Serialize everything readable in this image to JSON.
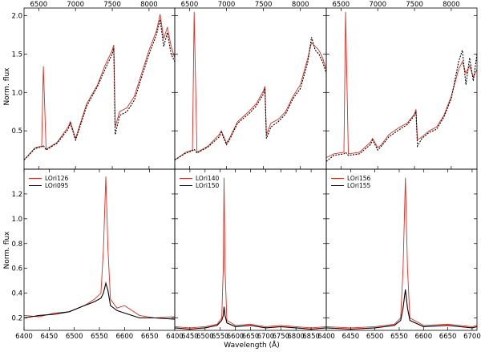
{
  "colors": {
    "red": "#e8271c",
    "black": "#000000",
    "axis": "#000000"
  },
  "labels": {
    "ylabel": "Norm. flux",
    "xlabel": "Wavelength (Å)"
  },
  "chart_data": [
    {
      "type": "line",
      "panel": "top-left",
      "xlim": [
        6300,
        8350
      ],
      "ylim": [
        0.0,
        2.1
      ],
      "xticks": [
        6500,
        7000,
        7500,
        8000
      ],
      "yticks": [
        0.5,
        1.0,
        1.5,
        2.0
      ],
      "ytick_labels": [
        "0.5",
        "1.0",
        "1.5",
        "2.0"
      ],
      "series": [
        {
          "color": "red",
          "style": "solid",
          "x": [
            6300,
            6450,
            6540,
            6563,
            6600,
            6750,
            6900,
            6930,
            7000,
            7050,
            7150,
            7300,
            7400,
            7500,
            7520,
            7540,
            7600,
            7700,
            7800,
            7900,
            8000,
            8100,
            8150,
            8200,
            8250,
            8300,
            8350
          ],
          "y": [
            0.12,
            0.28,
            0.3,
            1.34,
            0.26,
            0.35,
            0.55,
            0.62,
            0.4,
            0.55,
            0.85,
            1.1,
            1.35,
            1.55,
            1.62,
            0.55,
            0.75,
            0.8,
            0.95,
            1.25,
            1.55,
            1.8,
            2.02,
            1.7,
            1.85,
            1.6,
            1.45
          ]
        },
        {
          "color": "black",
          "style": "dashed",
          "x": [
            6300,
            6450,
            6540,
            6563,
            6600,
            6750,
            6900,
            6930,
            7000,
            7050,
            7150,
            7300,
            7400,
            7500,
            7520,
            7540,
            7600,
            7700,
            7800,
            7900,
            8000,
            8100,
            8150,
            8200,
            8250,
            8300,
            8350
          ],
          "y": [
            0.12,
            0.27,
            0.29,
            0.31,
            0.25,
            0.34,
            0.52,
            0.6,
            0.38,
            0.52,
            0.82,
            1.08,
            1.3,
            1.5,
            1.58,
            0.45,
            0.7,
            0.75,
            0.9,
            1.2,
            1.5,
            1.75,
            1.95,
            1.6,
            1.78,
            1.5,
            1.4
          ]
        }
      ]
    },
    {
      "type": "line",
      "panel": "top-middle",
      "xlim": [
        6300,
        8350
      ],
      "ylim": [
        0.0,
        2.1
      ],
      "xticks": [
        6500,
        7000,
        7500,
        8000
      ],
      "yticks": [
        0.5,
        1.0,
        1.5,
        2.0
      ],
      "series": [
        {
          "color": "red",
          "style": "solid",
          "x": [
            6300,
            6450,
            6540,
            6563,
            6600,
            6750,
            6900,
            6930,
            7000,
            7050,
            7150,
            7300,
            7400,
            7500,
            7520,
            7540,
            7600,
            7700,
            7800,
            7900,
            8000,
            8100,
            8150,
            8200,
            8250,
            8300,
            8350
          ],
          "y": [
            0.12,
            0.22,
            0.25,
            2.05,
            0.22,
            0.3,
            0.45,
            0.5,
            0.34,
            0.42,
            0.62,
            0.75,
            0.85,
            1.02,
            1.08,
            0.45,
            0.6,
            0.65,
            0.75,
            0.95,
            1.1,
            1.45,
            1.65,
            1.6,
            1.55,
            1.45,
            1.3
          ]
        },
        {
          "color": "black",
          "style": "dashed",
          "x": [
            6300,
            6450,
            6540,
            6563,
            6600,
            6750,
            6900,
            6930,
            7000,
            7050,
            7150,
            7300,
            7400,
            7500,
            7520,
            7540,
            7600,
            7700,
            7800,
            7900,
            8000,
            8100,
            8150,
            8200,
            8250,
            8300,
            8350
          ],
          "y": [
            0.12,
            0.21,
            0.24,
            0.26,
            0.21,
            0.29,
            0.42,
            0.48,
            0.32,
            0.4,
            0.6,
            0.72,
            0.82,
            0.98,
            1.05,
            0.4,
            0.55,
            0.62,
            0.72,
            0.92,
            1.05,
            1.4,
            1.72,
            1.55,
            1.5,
            1.4,
            1.25
          ]
        }
      ]
    },
    {
      "type": "line",
      "panel": "top-right",
      "xlim": [
        6300,
        8350
      ],
      "ylim": [
        0.0,
        2.1
      ],
      "xticks": [
        6500,
        7000,
        7500,
        8000
      ],
      "yticks": [
        0.5,
        1.0,
        1.5,
        2.0
      ],
      "series": [
        {
          "color": "red",
          "style": "solid",
          "x": [
            6300,
            6400,
            6540,
            6563,
            6600,
            6750,
            6900,
            6930,
            7000,
            7050,
            7150,
            7300,
            7400,
            7500,
            7520,
            7540,
            7600,
            7700,
            7800,
            7900,
            8000,
            8100,
            8150,
            8200,
            8250,
            8300,
            8350
          ],
          "y": [
            0.15,
            0.2,
            0.22,
            2.05,
            0.2,
            0.22,
            0.35,
            0.4,
            0.28,
            0.32,
            0.45,
            0.55,
            0.6,
            0.72,
            0.78,
            0.38,
            0.42,
            0.5,
            0.55,
            0.7,
            0.95,
            1.3,
            1.4,
            1.25,
            1.35,
            1.2,
            1.3
          ]
        },
        {
          "color": "black",
          "style": "dashed",
          "x": [
            6300,
            6400,
            6540,
            6563,
            6600,
            6750,
            6900,
            6930,
            7000,
            7050,
            7150,
            7300,
            7400,
            7500,
            7520,
            7540,
            7600,
            7700,
            7800,
            7900,
            8000,
            8100,
            8150,
            8200,
            8250,
            8300,
            8350
          ],
          "y": [
            0.1,
            0.18,
            0.2,
            0.22,
            0.18,
            0.2,
            0.32,
            0.38,
            0.25,
            0.3,
            0.42,
            0.52,
            0.58,
            0.7,
            0.75,
            0.3,
            0.4,
            0.48,
            0.52,
            0.68,
            0.92,
            1.4,
            1.55,
            1.1,
            1.45,
            1.15,
            1.5
          ]
        }
      ]
    },
    {
      "type": "line",
      "panel": "bottom-left",
      "xlim": [
        6400,
        6700
      ],
      "ylim": [
        0.1,
        1.4
      ],
      "xticks": [
        6400,
        6450,
        6500,
        6550,
        6600,
        6650
      ],
      "yticks": [
        0.2,
        0.4,
        0.6,
        0.8,
        1.0,
        1.2
      ],
      "xtick_labels": [
        "6400",
        "6450",
        "6500",
        "6550",
        "6600",
        "6650"
      ],
      "ytick_labels": [
        "0.2",
        "0.4",
        "0.6",
        "0.8",
        "1.0",
        "1.2"
      ],
      "legend": [
        "LOri126",
        "LOri095"
      ],
      "series": [
        {
          "name": "LOri126",
          "color": "red",
          "style": "solid",
          "x": [
            6400,
            6430,
            6460,
            6490,
            6520,
            6540,
            6553,
            6558,
            6562.8,
            6567,
            6572,
            6585,
            6600,
            6630,
            6660,
            6700
          ],
          "y": [
            0.22,
            0.21,
            0.24,
            0.25,
            0.3,
            0.35,
            0.4,
            0.75,
            1.34,
            0.75,
            0.35,
            0.28,
            0.3,
            0.22,
            0.2,
            0.21
          ]
        },
        {
          "name": "LOri095",
          "color": "black",
          "style": "solid",
          "x": [
            6400,
            6430,
            6460,
            6490,
            6520,
            6540,
            6553,
            6558,
            6562.8,
            6567,
            6572,
            6585,
            6600,
            6630,
            6660,
            6700
          ],
          "y": [
            0.2,
            0.22,
            0.23,
            0.25,
            0.3,
            0.33,
            0.36,
            0.4,
            0.48,
            0.42,
            0.3,
            0.26,
            0.24,
            0.2,
            0.2,
            0.19
          ]
        }
      ]
    },
    {
      "type": "line",
      "panel": "bottom-middle",
      "xlim": [
        6400,
        6900
      ],
      "ylim": [
        0.1,
        1.4
      ],
      "xticks": [
        6400,
        6450,
        6500,
        6550,
        6600,
        6650,
        6700,
        6750,
        6800,
        6850
      ],
      "yticks": [
        0.2,
        0.4,
        0.6,
        0.8,
        1.0,
        1.2
      ],
      "xtick_labels": [
        "6400",
        "6450",
        "6500",
        "6550",
        "6600",
        "6650",
        "6700",
        "6750",
        "6800",
        "6850"
      ],
      "legend": [
        "LOri140",
        "LOri150"
      ],
      "series": [
        {
          "name": "LOri140",
          "color": "red",
          "style": "solid",
          "x": [
            6400,
            6450,
            6500,
            6540,
            6555,
            6560,
            6562.8,
            6566,
            6572,
            6600,
            6650,
            6700,
            6750,
            6800,
            6850,
            6900
          ],
          "y": [
            0.13,
            0.12,
            0.13,
            0.15,
            0.2,
            0.6,
            1.33,
            0.6,
            0.18,
            0.14,
            0.15,
            0.13,
            0.14,
            0.13,
            0.12,
            0.13
          ]
        },
        {
          "name": "LOri150",
          "color": "black",
          "style": "solid",
          "x": [
            6400,
            6450,
            6500,
            6540,
            6555,
            6560,
            6562.8,
            6566,
            6572,
            6600,
            6650,
            6700,
            6750,
            6800,
            6850,
            6900
          ],
          "y": [
            0.12,
            0.11,
            0.12,
            0.14,
            0.18,
            0.22,
            0.29,
            0.22,
            0.16,
            0.13,
            0.14,
            0.12,
            0.13,
            0.12,
            0.11,
            0.12
          ]
        }
      ]
    },
    {
      "type": "line",
      "panel": "bottom-right",
      "xlim": [
        6400,
        6710
      ],
      "ylim": [
        0.1,
        1.4
      ],
      "xticks": [
        6400,
        6450,
        6500,
        6550,
        6600,
        6650,
        6700
      ],
      "yticks": [
        0.2,
        0.4,
        0.6,
        0.8,
        1.0,
        1.2
      ],
      "xtick_labels": [
        "6400",
        "6450",
        "6500",
        "6550",
        "6600",
        "6650",
        "6700"
      ],
      "legend": [
        "LOri156",
        "LOri155"
      ],
      "series": [
        {
          "name": "LOri156",
          "color": "red",
          "style": "solid",
          "x": [
            6400,
            6450,
            6500,
            6540,
            6553,
            6558,
            6562.8,
            6567,
            6572,
            6600,
            6650,
            6700,
            6710
          ],
          "y": [
            0.13,
            0.12,
            0.13,
            0.15,
            0.2,
            0.6,
            1.33,
            0.6,
            0.2,
            0.14,
            0.15,
            0.13,
            0.14
          ]
        },
        {
          "name": "LOri155",
          "color": "black",
          "style": "solid",
          "x": [
            6400,
            6450,
            6500,
            6540,
            6553,
            6558,
            6562.8,
            6567,
            6572,
            6600,
            6650,
            6700,
            6710
          ],
          "y": [
            0.12,
            0.11,
            0.12,
            0.14,
            0.18,
            0.28,
            0.43,
            0.28,
            0.18,
            0.13,
            0.14,
            0.12,
            0.13
          ]
        }
      ]
    }
  ]
}
